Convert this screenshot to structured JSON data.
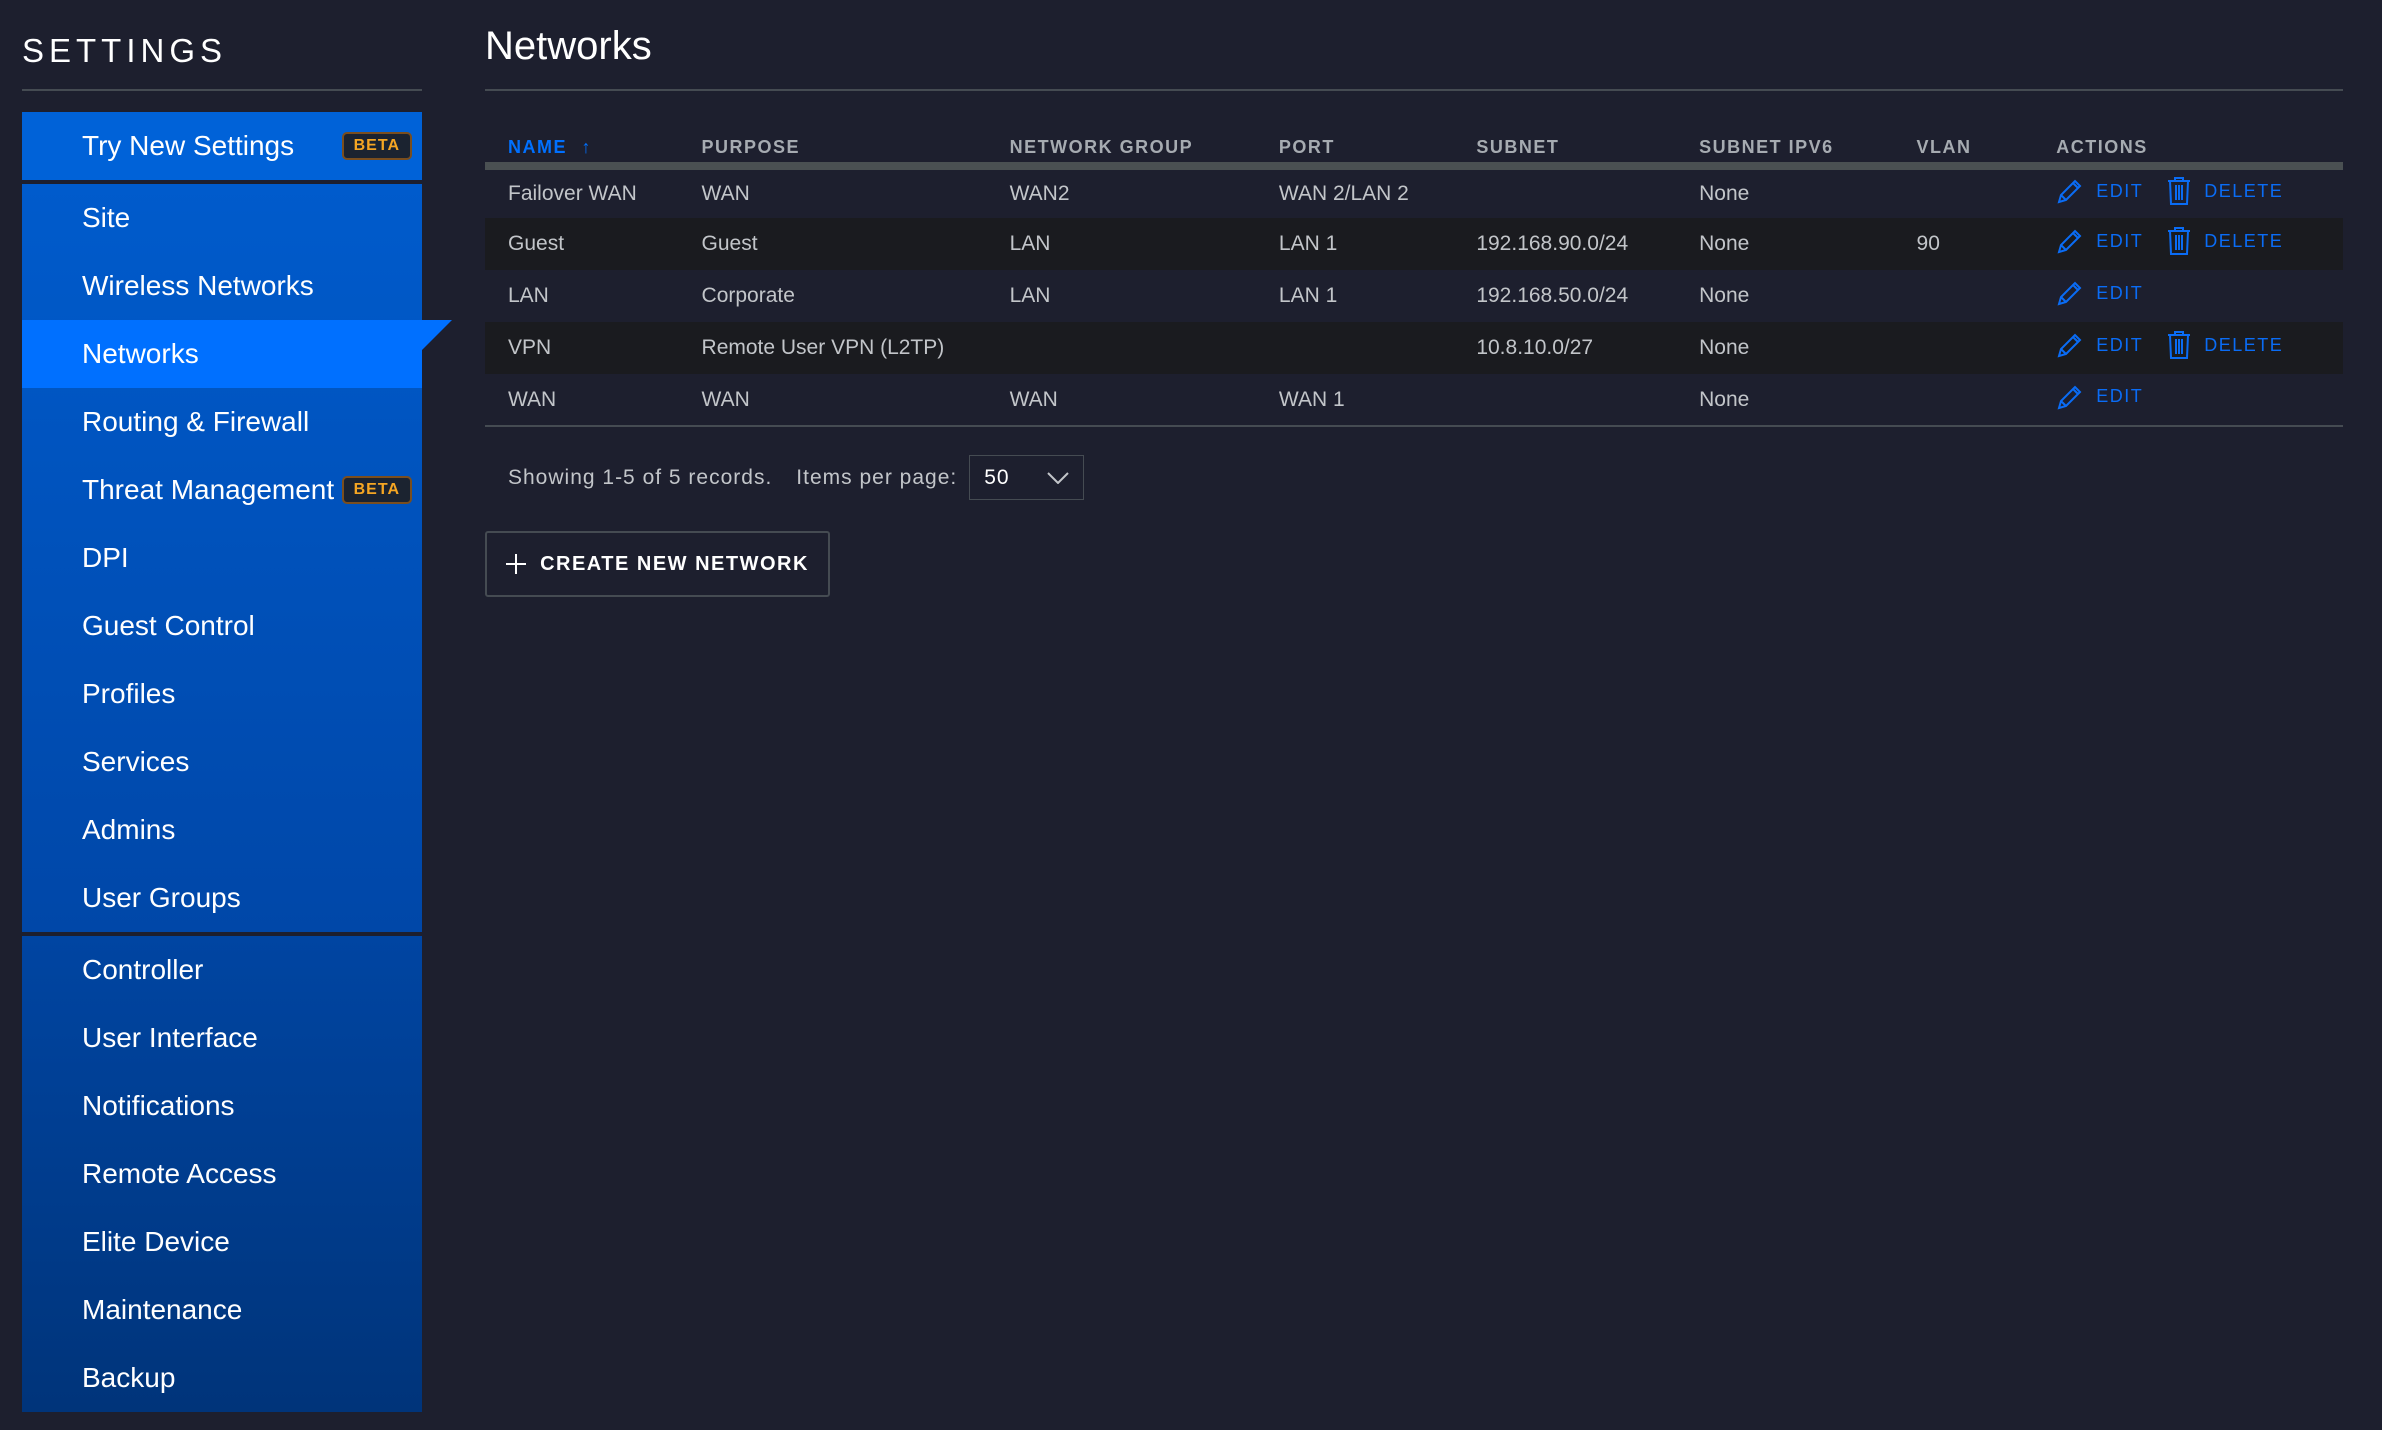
{
  "sidebar": {
    "title": "SETTINGS",
    "beta": "BETA",
    "top": {
      "label": "Try New Settings"
    },
    "group1": [
      {
        "label": "Site"
      },
      {
        "label": "Wireless Networks"
      },
      {
        "label": "Networks"
      },
      {
        "label": "Routing & Firewall"
      },
      {
        "label": "Threat Management"
      },
      {
        "label": "DPI"
      },
      {
        "label": "Guest Control"
      },
      {
        "label": "Profiles"
      },
      {
        "label": "Services"
      },
      {
        "label": "Admins"
      },
      {
        "label": "User Groups"
      }
    ],
    "group2": [
      {
        "label": "Controller"
      },
      {
        "label": "User Interface"
      },
      {
        "label": "Notifications"
      },
      {
        "label": "Remote Access"
      },
      {
        "label": "Elite Device"
      },
      {
        "label": "Maintenance"
      },
      {
        "label": "Backup"
      }
    ]
  },
  "main": {
    "title": "Networks",
    "columns": [
      "NAME",
      "PURPOSE",
      "NETWORK GROUP",
      "PORT",
      "SUBNET",
      "SUBNET IPV6",
      "VLAN",
      "ACTIONS"
    ],
    "sort_icon": "arrow-up-icon",
    "rows": [
      {
        "name": "Failover WAN",
        "purpose": "WAN",
        "group": "WAN2",
        "port": "WAN 2/LAN 2",
        "subnet": "",
        "ipv6": "None",
        "vlan": "",
        "edit": "EDIT",
        "delete": "DELETE"
      },
      {
        "name": "Guest",
        "purpose": "Guest",
        "group": "LAN",
        "port": "LAN 1",
        "subnet": "192.168.90.0/24",
        "ipv6": "None",
        "vlan": "90",
        "edit": "EDIT",
        "delete": "DELETE"
      },
      {
        "name": "LAN",
        "purpose": "Corporate",
        "group": "LAN",
        "port": "LAN 1",
        "subnet": "192.168.50.0/24",
        "ipv6": "None",
        "vlan": "",
        "edit": "EDIT"
      },
      {
        "name": "VPN",
        "purpose": "Remote User VPN (L2TP)",
        "group": "",
        "port": "",
        "subnet": "10.8.10.0/27",
        "ipv6": "None",
        "vlan": "",
        "edit": "EDIT",
        "delete": "DELETE"
      },
      {
        "name": "WAN",
        "purpose": "WAN",
        "group": "WAN",
        "port": "WAN 1",
        "subnet": "",
        "ipv6": "None",
        "vlan": "",
        "edit": "EDIT"
      }
    ],
    "showing": "Showing 1-5 of 5 records.",
    "items_per_page_label": "Items per page:",
    "items_per_page": "50",
    "create_button": "CREATE NEW NETWORK"
  },
  "colors": {
    "accent": "#0070ff",
    "beta": "#f5a623",
    "background": "#1d1f2e"
  }
}
